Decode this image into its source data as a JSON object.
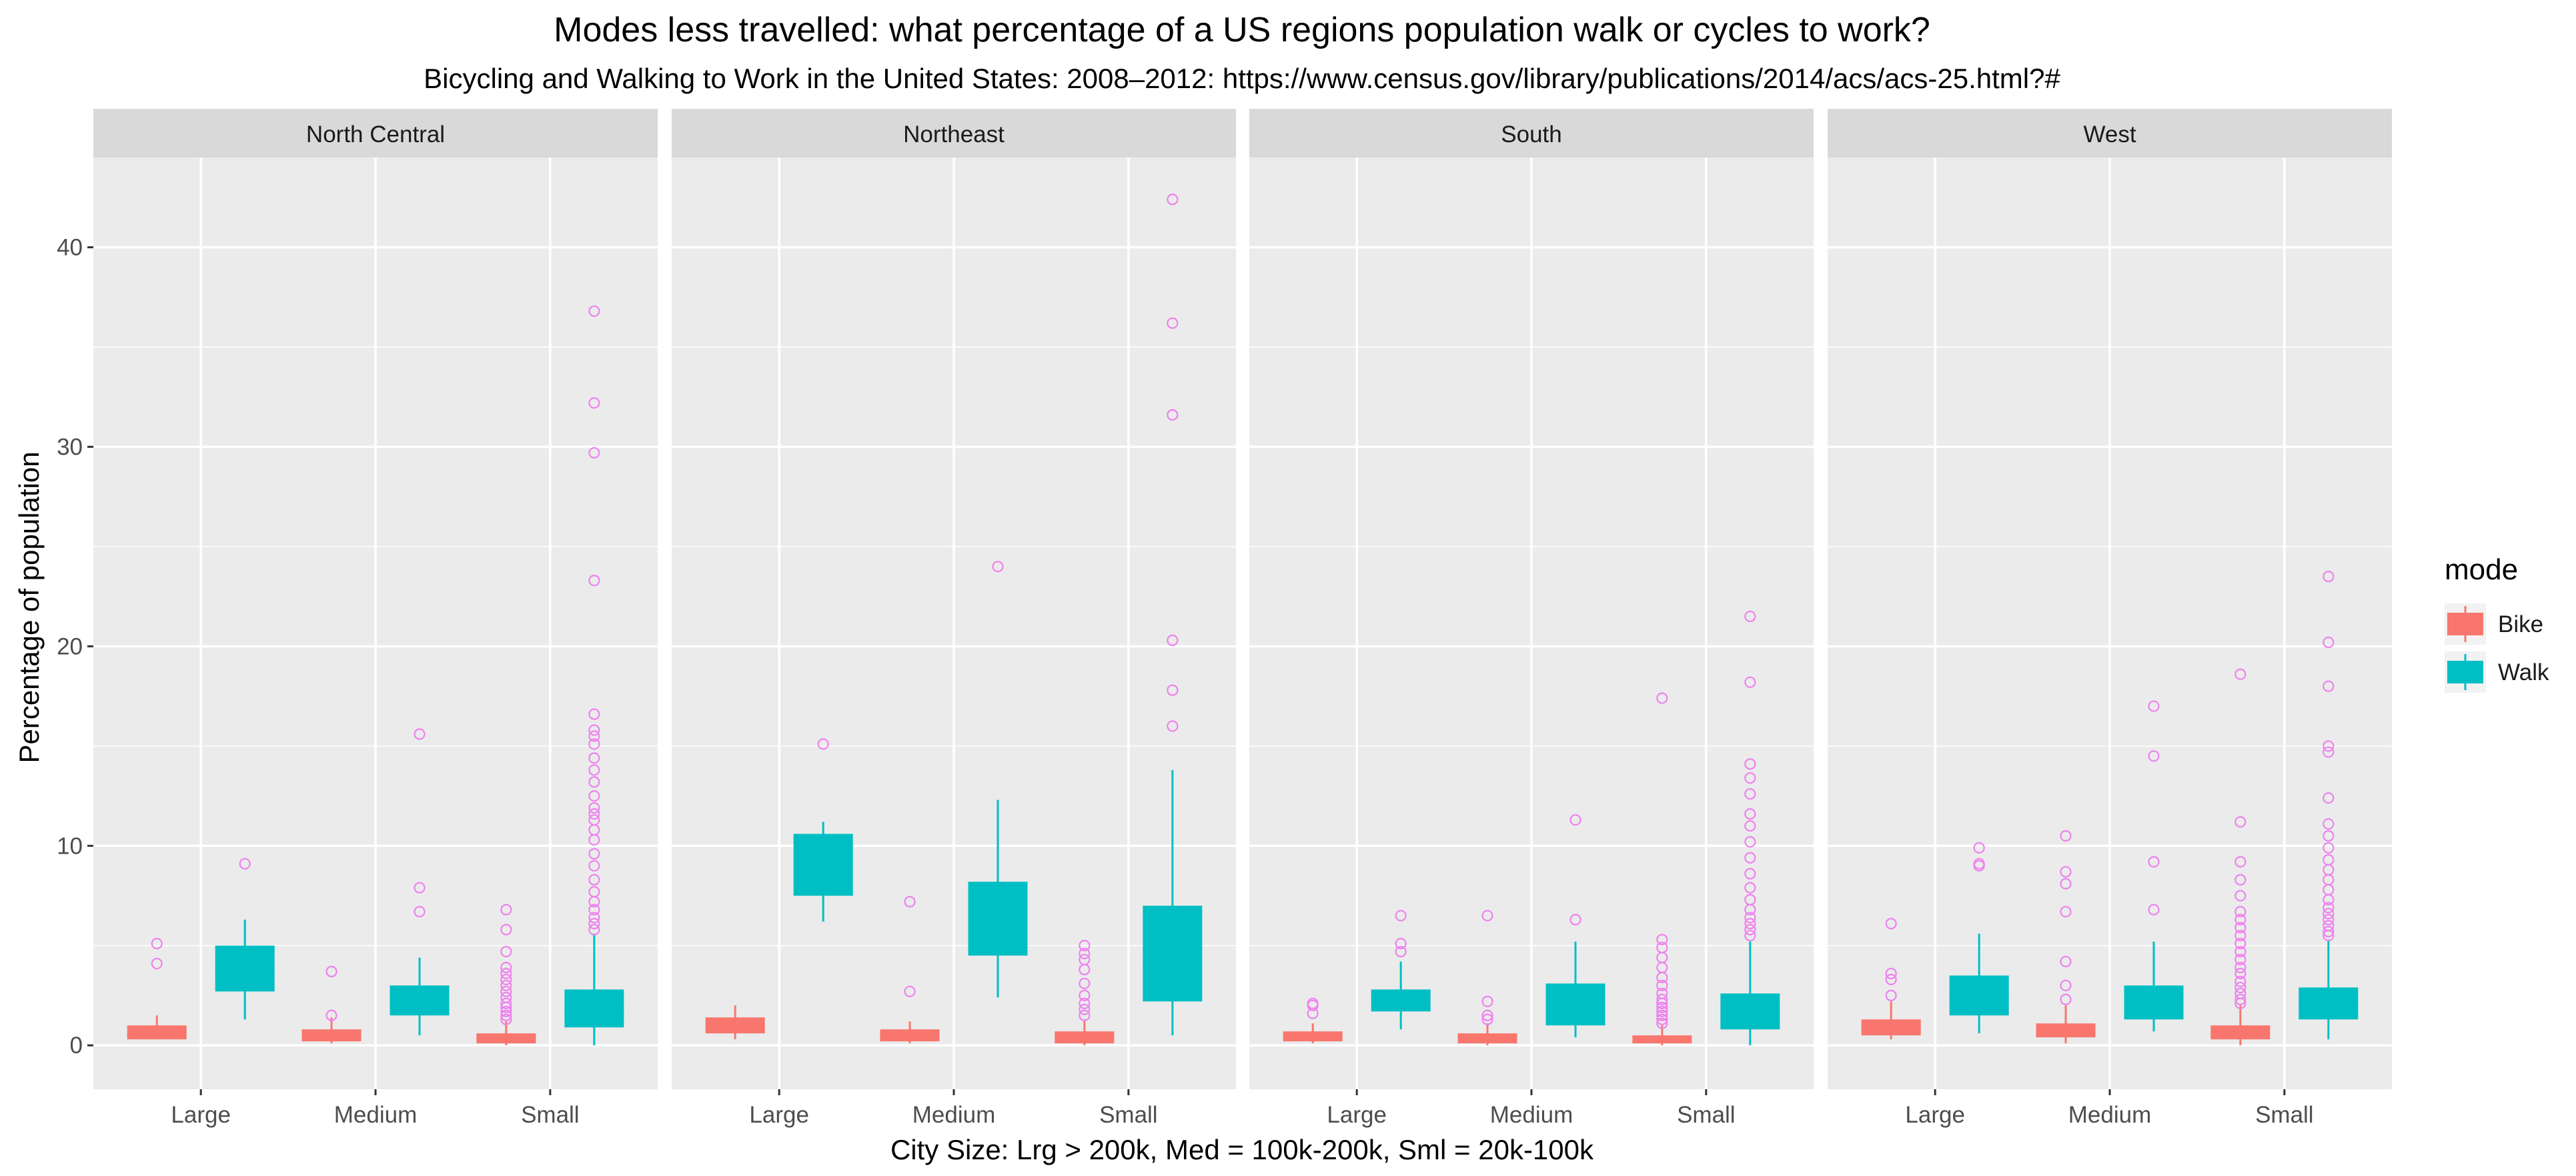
{
  "chart_data": {
    "type": "boxplot",
    "title": "Modes less travelled: what percentage of a US regions population walk or cycles to work?",
    "subtitle": "Bicycling and Walking to Work in the United States: 2008–2012:  https://www.census.gov/library/publications/2014/acs/acs-25.html?#",
    "xlabel": "City Size: Lrg > 200k, Med = 100k-200k, Sml = 20k-100k",
    "ylabel": "Percentage of population",
    "ylim": [
      -2.2,
      44.5
    ],
    "yticks": [
      0,
      10,
      20,
      30,
      40
    ],
    "categories": [
      "Large",
      "Medium",
      "Small"
    ],
    "facets": [
      "North Central",
      "Northeast",
      "South",
      "West"
    ],
    "legend": {
      "title": "mode",
      "position": "right",
      "items": [
        {
          "name": "Bike",
          "color": "#F8766D"
        },
        {
          "name": "Walk",
          "color": "#00BFC4"
        }
      ]
    },
    "colors": {
      "panel_bg": "#EBEBEB",
      "grid": "#FFFFFF",
      "strip_bg": "#D9D9D9",
      "outlier": "#EE82EE",
      "bike": "#F8766D",
      "walk": "#00BFC4"
    },
    "grid": true,
    "boxes": [
      {
        "facet": "North Central",
        "size": "Large",
        "mode": "Bike",
        "min": 0.3,
        "q1": 0.3,
        "median": 0.5,
        "q3": 1.0,
        "max": 1.5,
        "outliers": [
          4.1,
          5.1
        ]
      },
      {
        "facet": "North Central",
        "size": "Large",
        "mode": "Walk",
        "min": 1.3,
        "q1": 2.7,
        "median": 3.7,
        "q3": 5.0,
        "max": 6.3,
        "outliers": [
          9.1
        ]
      },
      {
        "facet": "North Central",
        "size": "Medium",
        "mode": "Bike",
        "min": 0.1,
        "q1": 0.2,
        "median": 0.4,
        "q3": 0.8,
        "max": 1.4,
        "outliers": [
          1.5,
          3.7
        ]
      },
      {
        "facet": "North Central",
        "size": "Medium",
        "mode": "Walk",
        "min": 0.5,
        "q1": 1.5,
        "median": 2.0,
        "q3": 3.0,
        "max": 4.4,
        "outliers": [
          6.7,
          7.9,
          15.6
        ]
      },
      {
        "facet": "North Central",
        "size": "Small",
        "mode": "Bike",
        "min": 0.0,
        "q1": 0.1,
        "median": 0.3,
        "q3": 0.6,
        "max": 1.2,
        "outliers": [
          1.3,
          1.5,
          1.7,
          1.9,
          2.1,
          2.4,
          2.7,
          3.0,
          3.3,
          3.6,
          3.9,
          4.7,
          5.8,
          6.8
        ]
      },
      {
        "facet": "North Central",
        "size": "Small",
        "mode": "Walk",
        "min": 0.0,
        "q1": 0.9,
        "median": 1.6,
        "q3": 2.8,
        "max": 5.6,
        "outliers": [
          5.8,
          6.1,
          6.4,
          6.8,
          7.2,
          7.7,
          8.3,
          9.0,
          9.6,
          10.3,
          10.8,
          11.3,
          11.6,
          11.9,
          12.5,
          13.2,
          13.8,
          14.4,
          15.1,
          15.5,
          15.8,
          16.6,
          23.3,
          29.7,
          32.2,
          36.8
        ]
      },
      {
        "facet": "Northeast",
        "size": "Large",
        "mode": "Bike",
        "min": 0.3,
        "q1": 0.6,
        "median": 0.8,
        "q3": 1.4,
        "max": 2.0,
        "outliers": []
      },
      {
        "facet": "Northeast",
        "size": "Large",
        "mode": "Walk",
        "min": 6.2,
        "q1": 7.5,
        "median": 9.5,
        "q3": 10.6,
        "max": 11.2,
        "outliers": [
          15.1
        ]
      },
      {
        "facet": "Northeast",
        "size": "Medium",
        "mode": "Bike",
        "min": 0.1,
        "q1": 0.2,
        "median": 0.4,
        "q3": 0.8,
        "max": 1.2,
        "outliers": [
          2.7,
          7.2
        ]
      },
      {
        "facet": "Northeast",
        "size": "Medium",
        "mode": "Walk",
        "min": 2.4,
        "q1": 4.5,
        "median": 6.0,
        "q3": 8.2,
        "max": 12.3,
        "outliers": [
          24.0
        ]
      },
      {
        "facet": "Northeast",
        "size": "Small",
        "mode": "Bike",
        "min": 0.0,
        "q1": 0.1,
        "median": 0.3,
        "q3": 0.7,
        "max": 1.3,
        "outliers": [
          1.5,
          1.8,
          2.1,
          2.5,
          3.1,
          3.8,
          4.3,
          4.6,
          5.0
        ]
      },
      {
        "facet": "Northeast",
        "size": "Small",
        "mode": "Walk",
        "min": 0.5,
        "q1": 2.2,
        "median": 4.0,
        "q3": 7.0,
        "max": 13.8,
        "outliers": [
          16.0,
          17.8,
          20.3,
          31.6,
          36.2,
          42.4
        ]
      },
      {
        "facet": "South",
        "size": "Large",
        "mode": "Bike",
        "min": 0.1,
        "q1": 0.2,
        "median": 0.4,
        "q3": 0.7,
        "max": 1.1,
        "outliers": [
          1.6,
          2.0,
          2.1
        ]
      },
      {
        "facet": "South",
        "size": "Large",
        "mode": "Walk",
        "min": 0.8,
        "q1": 1.7,
        "median": 2.3,
        "q3": 2.8,
        "max": 4.2,
        "outliers": [
          4.7,
          5.1,
          6.5
        ]
      },
      {
        "facet": "South",
        "size": "Medium",
        "mode": "Bike",
        "min": 0.0,
        "q1": 0.1,
        "median": 0.3,
        "q3": 0.6,
        "max": 1.1,
        "outliers": [
          1.3,
          1.5,
          2.2,
          6.5
        ]
      },
      {
        "facet": "South",
        "size": "Medium",
        "mode": "Walk",
        "min": 0.4,
        "q1": 1.0,
        "median": 1.8,
        "q3": 3.1,
        "max": 5.2,
        "outliers": [
          6.3,
          11.3
        ]
      },
      {
        "facet": "South",
        "size": "Small",
        "mode": "Bike",
        "min": 0.0,
        "q1": 0.1,
        "median": 0.2,
        "q3": 0.5,
        "max": 1.0,
        "outliers": [
          1.1,
          1.3,
          1.5,
          1.7,
          1.9,
          2.1,
          2.3,
          2.6,
          3.0,
          3.4,
          3.9,
          4.4,
          4.9,
          5.3,
          17.4
        ]
      },
      {
        "facet": "South",
        "size": "Small",
        "mode": "Walk",
        "min": 0.0,
        "q1": 0.8,
        "median": 1.5,
        "q3": 2.6,
        "max": 5.2,
        "outliers": [
          5.5,
          5.8,
          6.1,
          6.4,
          6.8,
          7.3,
          7.9,
          8.6,
          9.4,
          10.2,
          11.0,
          11.6,
          12.6,
          13.4,
          14.1,
          18.2,
          21.5
        ]
      },
      {
        "facet": "West",
        "size": "Large",
        "mode": "Bike",
        "min": 0.3,
        "q1": 0.5,
        "median": 0.8,
        "q3": 1.3,
        "max": 2.2,
        "outliers": [
          2.5,
          3.3,
          3.6,
          6.1
        ]
      },
      {
        "facet": "West",
        "size": "Large",
        "mode": "Walk",
        "min": 0.6,
        "q1": 1.5,
        "median": 2.6,
        "q3": 3.5,
        "max": 5.6,
        "outliers": [
          9.0,
          9.1,
          9.9
        ]
      },
      {
        "facet": "West",
        "size": "Medium",
        "mode": "Bike",
        "min": 0.1,
        "q1": 0.4,
        "median": 0.6,
        "q3": 1.1,
        "max": 2.0,
        "outliers": [
          2.3,
          3.0,
          4.2,
          6.7,
          8.1,
          8.7,
          10.5
        ]
      },
      {
        "facet": "West",
        "size": "Medium",
        "mode": "Walk",
        "min": 0.7,
        "q1": 1.3,
        "median": 2.0,
        "q3": 3.0,
        "max": 5.2,
        "outliers": [
          6.8,
          9.2,
          14.5,
          17.0
        ]
      },
      {
        "facet": "West",
        "size": "Small",
        "mode": "Bike",
        "min": 0.0,
        "q1": 0.3,
        "median": 0.6,
        "q3": 1.0,
        "max": 2.0,
        "outliers": [
          2.1,
          2.3,
          2.6,
          2.9,
          3.2,
          3.6,
          3.9,
          4.3,
          4.7,
          5.1,
          5.5,
          5.9,
          6.3,
          6.7,
          7.5,
          8.3,
          9.2,
          11.2,
          18.6
        ]
      },
      {
        "facet": "West",
        "size": "Small",
        "mode": "Walk",
        "min": 0.3,
        "q1": 1.3,
        "median": 2.0,
        "q3": 2.9,
        "max": 5.3,
        "outliers": [
          5.5,
          5.7,
          6.0,
          6.3,
          6.6,
          6.9,
          7.3,
          7.8,
          8.3,
          8.8,
          9.3,
          9.9,
          10.5,
          11.1,
          12.4,
          14.7,
          15.0,
          18.0,
          20.2,
          23.5
        ]
      }
    ]
  }
}
